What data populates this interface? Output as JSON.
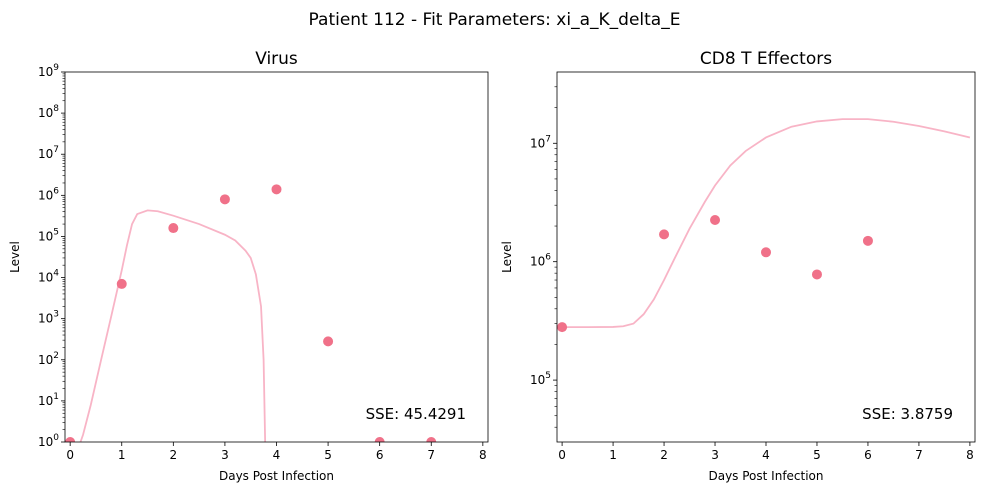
{
  "figure": {
    "suptitle": "Patient 112 - Fit Parameters: xi_a_K_delta_E"
  },
  "colors": {
    "fit_line": "#f8b4c6",
    "data_points": "#f07189"
  },
  "chart_data": [
    {
      "type": "scatter",
      "title": "Virus",
      "xlabel": "Days Post Infection",
      "ylabel": "Level",
      "yscale": "log",
      "xlim": [
        -0.1,
        8.1
      ],
      "ylim": [
        1,
        1000000000
      ],
      "xticks": [
        "0",
        "1",
        "2",
        "3",
        "4",
        "5",
        "6",
        "7",
        "8"
      ],
      "yticks": [
        "10^0",
        "10^1",
        "10^2",
        "10^3",
        "10^4",
        "10^5",
        "10^6",
        "10^7",
        "10^8",
        "10^9"
      ],
      "grid": false,
      "annotation": "SSE: 45.4291",
      "series": [
        {
          "kind": "points",
          "x": [
            0,
            1,
            2,
            3,
            4,
            5,
            6,
            7
          ],
          "y": [
            1,
            7000,
            160000,
            800000,
            1400000,
            280,
            1,
            1
          ]
        },
        {
          "kind": "line",
          "x": [
            0.2,
            0.25,
            0.4,
            0.6,
            0.8,
            1.0,
            1.1,
            1.2,
            1.3,
            1.5,
            1.7,
            2.0,
            2.5,
            3.0,
            3.2,
            3.4,
            3.5,
            3.6,
            3.7,
            3.75,
            3.78
          ],
          "y": [
            1,
            1.5,
            8,
            100,
            1200,
            15000,
            60000,
            200000,
            350000,
            430000,
            410000,
            320000,
            200000,
            110000,
            80000,
            45000,
            30000,
            12000,
            2000,
            100,
            1
          ]
        }
      ]
    },
    {
      "type": "scatter",
      "title": "CD8 T Effectors",
      "xlabel": "Days Post Infection",
      "ylabel": "Level",
      "yscale": "log",
      "xlim": [
        -0.1,
        8.1
      ],
      "ylim": [
        30000,
        40000000
      ],
      "xticks": [
        "0",
        "1",
        "2",
        "3",
        "4",
        "5",
        "6",
        "7",
        "8"
      ],
      "yticks": [
        "10^5",
        "10^6",
        "10^7"
      ],
      "grid": false,
      "annotation": "SSE: 3.8759",
      "series": [
        {
          "kind": "points",
          "x": [
            0,
            2,
            3,
            4,
            5,
            6
          ],
          "y": [
            280000,
            1700000,
            2250000,
            1200000,
            780000,
            1500000
          ]
        },
        {
          "kind": "line",
          "x": [
            0,
            0.5,
            1.0,
            1.2,
            1.4,
            1.6,
            1.8,
            2.0,
            2.2,
            2.5,
            2.8,
            3.0,
            3.3,
            3.6,
            4.0,
            4.5,
            5.0,
            5.5,
            6.0,
            6.5,
            7.0,
            7.5,
            8.0
          ],
          "y": [
            280000,
            280000,
            281000,
            285000,
            300000,
            360000,
            480000,
            700000,
            1050000,
            1900000,
            3200000,
            4400000,
            6500000,
            8600000,
            11200000,
            13800000,
            15300000,
            16000000,
            16000000,
            15200000,
            14000000,
            12600000,
            11200000
          ]
        }
      ]
    }
  ]
}
